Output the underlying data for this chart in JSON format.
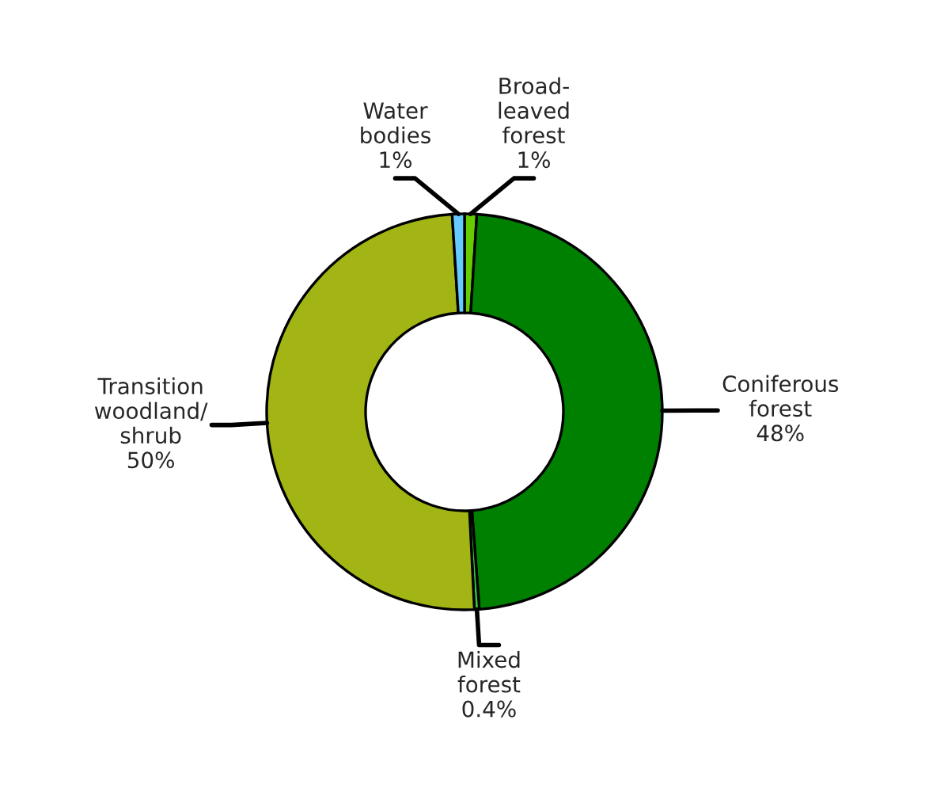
{
  "chart_data": {
    "type": "donut",
    "categories": [
      "Broad-\nleaved\nforest",
      "Coniferous\nforest",
      "Mixed\nforest",
      "Transition\nwoodland/\nshrub",
      "Water\nbodies"
    ],
    "values": [
      1,
      48,
      0.4,
      50,
      1
    ],
    "colors": [
      "#66cc00",
      "#008000",
      "#33cc33",
      "#a2b514",
      "#66ccff"
    ],
    "value_labels": [
      "1%",
      "48%",
      "0.4%",
      "50%",
      "1%"
    ],
    "legend": false
  }
}
